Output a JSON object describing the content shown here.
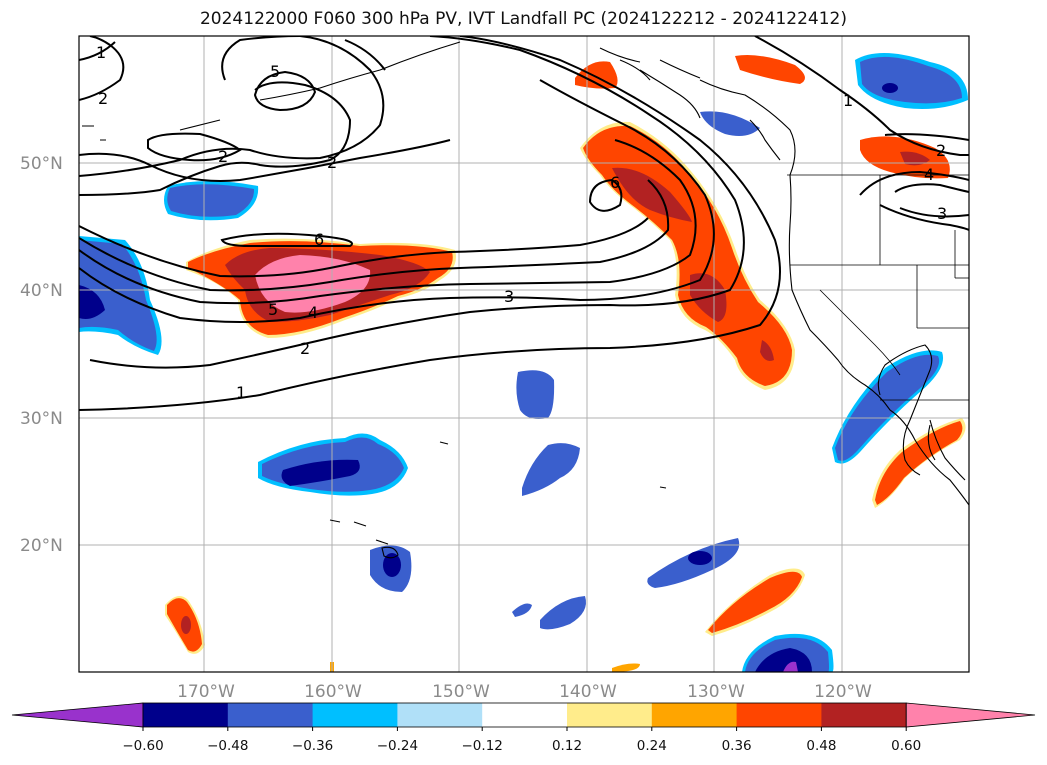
{
  "title": "2024122000 F060 300 hPa PV, IVT Landfall PC (2024122212 - 2024122412)",
  "map": {
    "lat_labels": [
      "50°N",
      "40°N",
      "30°N",
      "20°N"
    ],
    "lon_labels": [
      "170°W",
      "160°W",
      "150°W",
      "140°W",
      "130°W",
      "120°W"
    ],
    "contour_labels": [
      "1",
      "2",
      "2",
      "2",
      "5",
      "6",
      "3",
      "5",
      "4",
      "2",
      "1",
      "6",
      "1",
      "2",
      "4",
      "3"
    ]
  },
  "colorbar": {
    "tick_labels": [
      "−0.60",
      "−0.48",
      "−0.36",
      "−0.24",
      "−0.12",
      "0.12",
      "0.24",
      "0.36",
      "0.48",
      "0.60"
    ],
    "colors": [
      "#9932cc",
      "#00008b",
      "#3a5fcd",
      "#00bfff",
      "#b0e0f8",
      "#ffffff",
      "#ffec8b",
      "#ffa500",
      "#ff4500",
      "#b22222",
      "#ff82ab"
    ]
  }
}
